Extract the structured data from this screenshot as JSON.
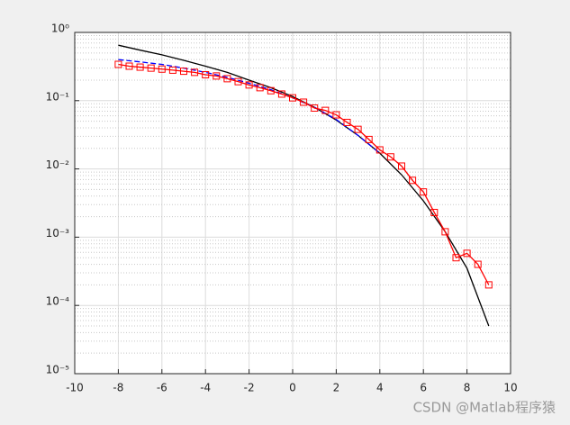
{
  "chart_data": {
    "type": "line",
    "xlim": [
      -10,
      10
    ],
    "xticks": [
      -10,
      -8,
      -6,
      -4,
      -2,
      0,
      2,
      4,
      6,
      8,
      10
    ],
    "ylim": [
      1e-05,
      1
    ],
    "log_y": true,
    "yticks": [
      {
        "value": 1e-05,
        "label": "10⁻⁵"
      },
      {
        "value": 0.0001,
        "label": "10⁻⁴"
      },
      {
        "value": 0.001,
        "label": "10⁻³"
      },
      {
        "value": 0.01,
        "label": "10⁻²"
      },
      {
        "value": 0.1,
        "label": "10⁻¹"
      },
      {
        "value": 1,
        "label": "10⁰"
      }
    ],
    "grid": true,
    "minor_grid": true,
    "series": [
      {
        "color": "#000000",
        "dash": false,
        "marker": "none",
        "x": [
          -8,
          -7,
          -6,
          -5,
          -4,
          -3,
          -2,
          -1,
          0,
          1,
          2,
          3,
          4,
          5,
          6,
          7,
          8,
          9
        ],
        "values": [
          0.65,
          0.55,
          0.47,
          0.39,
          0.32,
          0.26,
          0.2,
          0.155,
          0.115,
          0.08,
          0.052,
          0.031,
          0.017,
          0.0082,
          0.0034,
          0.0012,
          0.00035,
          5e-05
        ]
      },
      {
        "color": "#0000ff",
        "dash": true,
        "marker": "none",
        "x": [
          -8,
          -7,
          -6,
          -5,
          -4,
          -3,
          -2,
          -1,
          0,
          1,
          2,
          3,
          4
        ],
        "values": [
          0.4,
          0.37,
          0.34,
          0.3,
          0.26,
          0.22,
          0.18,
          0.145,
          0.11,
          0.08,
          0.053,
          0.031,
          0.017
        ]
      },
      {
        "color": "#ff0000",
        "dash": false,
        "marker": "square",
        "x": [
          -8,
          -7.5,
          -7,
          -6.5,
          -6,
          -5.5,
          -5,
          -4.5,
          -4,
          -3.5,
          -3,
          -2.5,
          -2,
          -1.5,
          -1,
          -0.5,
          0,
          0.5,
          1,
          1.5,
          2,
          2.5,
          3,
          3.5,
          4,
          4.5,
          5,
          5.5,
          6,
          6.5,
          7,
          7.5,
          8,
          8.5,
          9
        ],
        "values": [
          0.34,
          0.32,
          0.31,
          0.3,
          0.29,
          0.28,
          0.27,
          0.26,
          0.24,
          0.23,
          0.21,
          0.19,
          0.17,
          0.155,
          0.14,
          0.125,
          0.11,
          0.095,
          0.078,
          0.072,
          0.062,
          0.048,
          0.038,
          0.027,
          0.019,
          0.015,
          0.011,
          0.0068,
          0.0046,
          0.0023,
          0.0012,
          0.0005,
          0.00058,
          0.0004,
          0.0002
        ]
      }
    ]
  },
  "watermark": "CSDN @Matlab程序猿"
}
